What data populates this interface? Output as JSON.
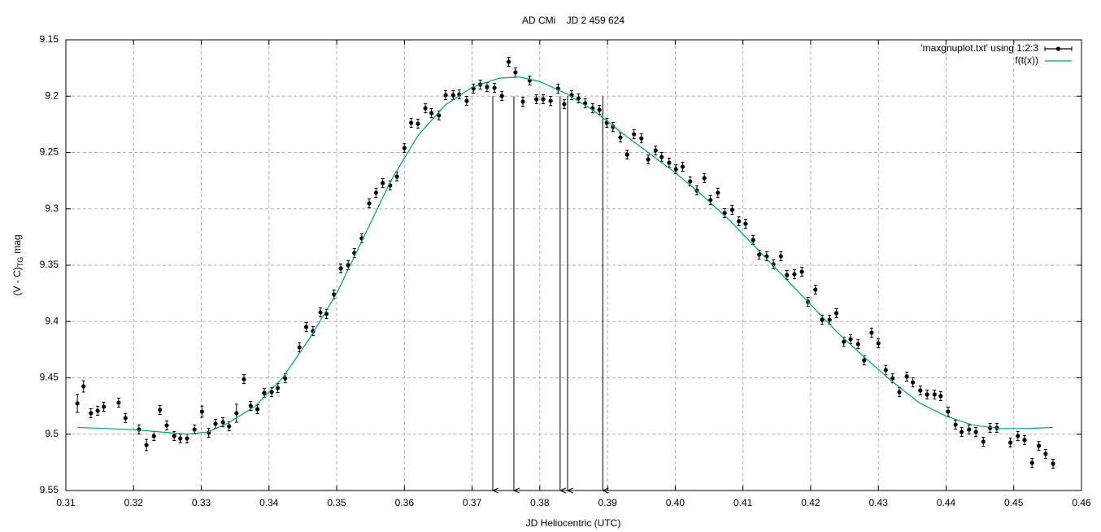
{
  "chart_data": {
    "type": "scatter",
    "title": "AD CMi    JD 2 459 624",
    "x_label": "JD Heliocentric (UTC)",
    "y_label": {
      "main": "(V - C)",
      "sub": "TG",
      "unit": "mag"
    },
    "xlim": [
      0.31,
      0.46
    ],
    "ylim": [
      9.55,
      9.15
    ],
    "xticks": [
      0.31,
      0.32,
      0.33,
      0.34,
      0.35,
      0.36,
      0.37,
      0.38,
      0.39,
      {
        "value": 0.4,
        "label": "0.40"
      },
      0.41,
      0.42,
      0.43,
      0.44,
      0.45,
      0.46
    ],
    "yticks": [
      9.15,
      9.2,
      9.25,
      9.3,
      9.35,
      9.4,
      9.45,
      9.5,
      9.55
    ],
    "grid": true,
    "legend": "top-right",
    "series": [
      {
        "name": "'maxgnuplot.txt' using 1:2:3",
        "color": "#000000",
        "style": "errorbars",
        "x": [
          0.3117,
          0.3126,
          0.3137,
          0.3147,
          0.3156,
          0.3178,
          0.3188,
          0.3208,
          0.3219,
          0.323,
          0.3239,
          0.3249,
          0.326,
          0.3269,
          0.3279,
          0.329,
          0.3301,
          0.3311,
          0.3321,
          0.3332,
          0.3341,
          0.3352,
          0.3363,
          0.3373,
          0.3383,
          0.3393,
          0.3404,
          0.3413,
          0.3424,
          0.3445,
          0.3455,
          0.3465,
          0.3476,
          0.3485,
          0.3496,
          0.3506,
          0.3517,
          0.3526,
          0.3537,
          0.3548,
          0.3558,
          0.3568,
          0.3579,
          0.3589,
          0.36,
          0.361,
          0.362,
          0.3631,
          0.364,
          0.3651,
          0.3661,
          0.3672,
          0.3681,
          0.3692,
          0.3702,
          0.3712,
          0.3722,
          0.3733,
          0.3744,
          0.3754,
          0.3764,
          0.3775,
          0.3785,
          0.3795,
          0.3805,
          0.3816,
          0.3827,
          0.3836,
          0.3847,
          0.3857,
          0.3867,
          0.3878,
          0.3888,
          0.3899,
          0.3908,
          0.3919,
          0.3929,
          0.3939,
          0.395,
          0.396,
          0.3971,
          0.398,
          0.3991,
          0.4001,
          0.4011,
          0.4022,
          0.4032,
          0.4043,
          0.4052,
          0.4063,
          0.4073,
          0.4084,
          0.4094,
          0.4104,
          0.4115,
          0.4124,
          0.4135,
          0.4145,
          0.4156,
          0.4165,
          0.4176,
          0.4187,
          0.4196,
          0.4207,
          0.4217,
          0.4228,
          0.4238,
          0.4249,
          0.4259,
          0.427,
          0.4279,
          0.429,
          0.43,
          0.4311,
          0.4321,
          0.4331,
          0.4342,
          0.4351,
          0.4362,
          0.4372,
          0.4383,
          0.4392,
          0.4403,
          0.4414,
          0.4423,
          0.4434,
          0.4444,
          0.4455,
          0.4465,
          0.4475,
          0.4495,
          0.4506,
          0.4516,
          0.4527,
          0.4537,
          0.4547,
          0.4558
        ],
        "values": [
          9.4727,
          9.4576,
          9.4814,
          9.4792,
          9.4756,
          9.472,
          9.4857,
          9.4958,
          9.5096,
          9.5016,
          9.4785,
          9.4922,
          9.5016,
          9.5038,
          9.5038,
          9.4958,
          9.48,
          9.4987,
          9.4908,
          9.4894,
          9.493,
          9.4814,
          9.4511,
          9.4749,
          9.4778,
          9.4634,
          9.4626,
          9.459,
          9.4504,
          9.4229,
          9.4049,
          9.4085,
          9.3919,
          9.3933,
          9.376,
          9.3529,
          9.35,
          9.3392,
          9.3262,
          9.2951,
          9.2857,
          9.2771,
          9.2792,
          9.2713,
          9.246,
          9.2236,
          9.2244,
          9.2107,
          9.215,
          9.2171,
          9.1991,
          9.1991,
          9.1984,
          9.2042,
          9.1933,
          9.1897,
          9.1919,
          9.1926,
          9.1998,
          9.1695,
          9.1789,
          9.2049,
          9.1861,
          9.2027,
          9.2027,
          9.2042,
          9.1933,
          9.207,
          9.1991,
          9.202,
          9.2063,
          9.2107,
          9.2121,
          9.2236,
          9.2273,
          9.2366,
          9.2518,
          9.2338,
          9.2374,
          9.2561,
          9.2482,
          9.254,
          9.259,
          9.2648,
          9.2626,
          9.2756,
          9.2836,
          9.2727,
          9.2922,
          9.2857,
          9.3038,
          9.3009,
          9.311,
          9.3132,
          9.3276,
          9.3406,
          9.3421,
          9.3493,
          9.3421,
          9.3587,
          9.358,
          9.3558,
          9.3825,
          9.3717,
          9.3984,
          9.3984,
          9.3926,
          9.4179,
          9.4157,
          9.42,
          9.4345,
          9.4099,
          9.4193,
          9.4431,
          9.4504,
          9.4626,
          9.4489,
          9.454,
          9.4612,
          9.4648,
          9.4648,
          9.4662,
          9.48,
          9.4915,
          9.498,
          9.4958,
          9.498,
          9.5067,
          9.4944,
          9.4944,
          9.5074,
          9.5016,
          9.5052,
          9.5255,
          9.5103,
          9.5175,
          9.5262
        ],
        "errors": [
          0.008,
          0.005,
          0.004,
          0.004,
          0.004,
          0.004,
          0.004,
          0.004,
          0.005,
          0.004,
          0.004,
          0.004,
          0.004,
          0.004,
          0.004,
          0.004,
          0.005,
          0.004,
          0.004,
          0.004,
          0.004,
          0.008,
          0.004,
          0.004,
          0.004,
          0.004,
          0.004,
          0.004,
          0.004,
          0.004,
          0.004,
          0.004,
          0.004,
          0.004,
          0.004,
          0.004,
          0.004,
          0.004,
          0.004,
          0.004,
          0.004,
          0.004,
          0.004,
          0.004,
          0.004,
          0.004,
          0.004,
          0.004,
          0.004,
          0.004,
          0.004,
          0.004,
          0.004,
          0.004,
          0.004,
          0.004,
          0.004,
          0.004,
          0.004,
          0.004,
          0.004,
          0.004,
          0.004,
          0.004,
          0.004,
          0.004,
          0.004,
          0.004,
          0.004,
          0.004,
          0.004,
          0.004,
          0.004,
          0.004,
          0.004,
          0.004,
          0.004,
          0.004,
          0.004,
          0.004,
          0.004,
          0.004,
          0.004,
          0.004,
          0.004,
          0.004,
          0.004,
          0.004,
          0.004,
          0.004,
          0.004,
          0.004,
          0.004,
          0.004,
          0.004,
          0.004,
          0.004,
          0.004,
          0.004,
          0.004,
          0.004,
          0.004,
          0.004,
          0.004,
          0.004,
          0.004,
          0.004,
          0.004,
          0.004,
          0.004,
          0.004,
          0.004,
          0.004,
          0.004,
          0.004,
          0.004,
          0.004,
          0.004,
          0.004,
          0.004,
          0.004,
          0.004,
          0.004,
          0.004,
          0.004,
          0.004,
          0.004,
          0.004,
          0.004,
          0.004,
          0.004,
          0.004,
          0.004,
          0.004,
          0.004,
          0.004,
          0.004
        ]
      },
      {
        "name": "f(t(x))",
        "color": "#009e73",
        "style": "line",
        "x": [
          0.3117,
          0.316,
          0.32,
          0.324,
          0.328,
          0.331,
          0.334,
          0.338,
          0.342,
          0.346,
          0.35,
          0.354,
          0.358,
          0.362,
          0.366,
          0.37,
          0.374,
          0.377,
          0.38,
          0.384,
          0.388,
          0.392,
          0.396,
          0.4,
          0.404,
          0.408,
          0.412,
          0.416,
          0.42,
          0.424,
          0.428,
          0.432,
          0.436,
          0.44,
          0.444,
          0.448,
          0.452,
          0.4558
        ],
        "values": [
          9.494,
          9.495,
          9.496,
          9.498,
          9.5,
          9.498,
          9.49,
          9.475,
          9.45,
          9.415,
          9.375,
          9.325,
          9.275,
          9.235,
          9.208,
          9.192,
          9.184,
          9.183,
          9.187,
          9.198,
          9.213,
          9.232,
          9.25,
          9.268,
          9.288,
          9.31,
          9.335,
          9.36,
          9.385,
          9.41,
          9.432,
          9.453,
          9.472,
          9.484,
          9.492,
          9.495,
          9.495,
          9.494
        ]
      }
    ],
    "arrows": {
      "x": [
        0.37305,
        0.37617,
        0.383,
        0.3841,
        0.3893
      ],
      "from_y": 9.2,
      "to_y": 9.55,
      "color": "#000000"
    }
  }
}
